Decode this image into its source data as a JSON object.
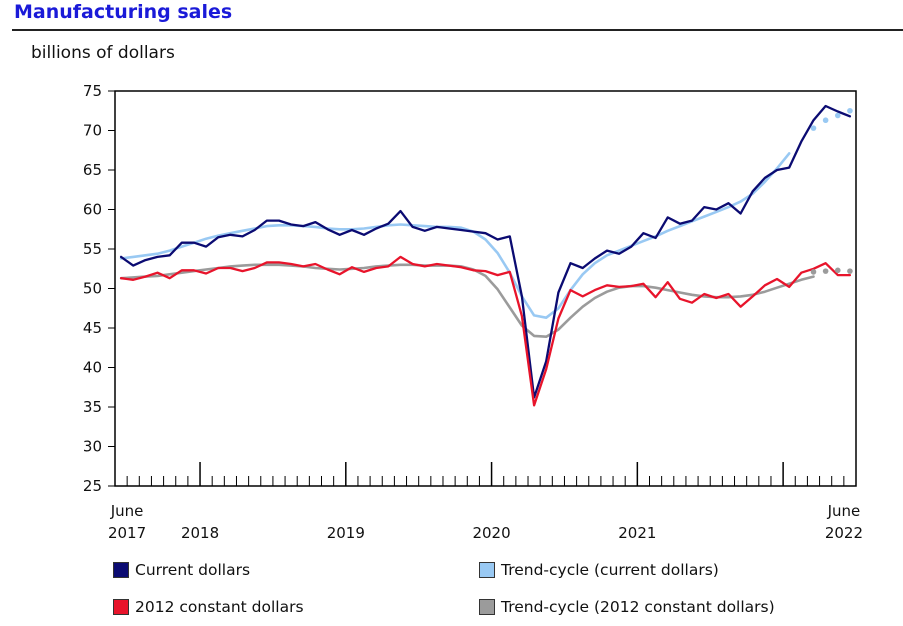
{
  "chart_data": {
    "type": "line",
    "title": "Manufacturing sales",
    "ylabel": "billions of dollars",
    "ylim": [
      25,
      75
    ],
    "yticks": [
      25,
      30,
      35,
      40,
      45,
      50,
      55,
      60,
      65,
      70,
      75
    ],
    "x_start": "June 2017",
    "x_end": "June 2022",
    "x_tick_labels": [
      {
        "month_index": 0,
        "line1": "June",
        "line2": "2017"
      },
      {
        "month_index": 6.5,
        "line1": "",
        "line2": "2018"
      },
      {
        "month_index": 18.5,
        "line1": "",
        "line2": "2019"
      },
      {
        "month_index": 30.5,
        "line1": "",
        "line2": "2020"
      },
      {
        "month_index": 42.5,
        "line1": "",
        "line2": "2021"
      },
      {
        "month_index": 60,
        "line1": "June",
        "line2": "2022"
      }
    ],
    "series": [
      {
        "name": "Current dollars",
        "color": "#0b0b72",
        "style": "solid",
        "values": [
          54.0,
          52.9,
          53.6,
          54.0,
          54.2,
          55.8,
          55.8,
          55.3,
          56.5,
          56.8,
          56.6,
          57.4,
          58.6,
          58.6,
          58.1,
          57.9,
          58.4,
          57.5,
          56.8,
          57.4,
          56.8,
          57.6,
          58.2,
          59.8,
          57.8,
          57.3,
          57.8,
          57.6,
          57.4,
          57.2,
          57.0,
          56.2,
          56.6,
          49.0,
          36.2,
          40.8,
          49.5,
          53.2,
          52.6,
          53.8,
          54.8,
          54.4,
          55.3,
          57.0,
          56.4,
          59.0,
          58.2,
          58.6,
          60.3,
          60.0,
          60.8,
          59.5,
          62.3,
          64.0,
          65.0,
          65.3,
          68.6,
          71.3,
          73.1,
          72.4,
          71.8
        ]
      },
      {
        "name": "Trend-cycle (current dollars)",
        "color": "#99c9f3",
        "style": "solid",
        "values": [
          53.8,
          54.0,
          54.2,
          54.4,
          54.8,
          55.3,
          55.8,
          56.3,
          56.7,
          57.0,
          57.3,
          57.6,
          57.9,
          58.0,
          58.0,
          57.9,
          57.8,
          57.6,
          57.5,
          57.5,
          57.6,
          57.8,
          58.0,
          58.1,
          58.0,
          57.9,
          57.8,
          57.8,
          57.7,
          57.2,
          56.2,
          54.5,
          52.0,
          49.0,
          46.6,
          46.3,
          47.5,
          49.8,
          51.8,
          53.2,
          54.2,
          54.8,
          55.4,
          56.0,
          56.6,
          57.3,
          57.9,
          58.5,
          59.1,
          59.7,
          60.3,
          61.0,
          62.0,
          63.5,
          65.2,
          67.1
        ]
      },
      {
        "name": "Trend-cycle (current dollars) projection",
        "color": "#99c9f3",
        "style": "dotted",
        "start": 57,
        "values": [
          70.3,
          71.3,
          71.9,
          72.5
        ]
      },
      {
        "name": "2012 constant dollars",
        "color": "#e8142b",
        "style": "solid",
        "values": [
          51.3,
          51.1,
          51.5,
          52.0,
          51.3,
          52.3,
          52.3,
          51.9,
          52.6,
          52.6,
          52.2,
          52.6,
          53.3,
          53.3,
          53.1,
          52.8,
          53.1,
          52.4,
          51.8,
          52.7,
          52.1,
          52.6,
          52.8,
          54.0,
          53.1,
          52.8,
          53.1,
          52.9,
          52.7,
          52.3,
          52.2,
          51.7,
          52.1,
          46.5,
          35.2,
          39.8,
          46.2,
          49.8,
          49.0,
          49.8,
          50.4,
          50.2,
          50.3,
          50.6,
          48.9,
          50.8,
          48.7,
          48.2,
          49.3,
          48.8,
          49.3,
          47.7,
          49.0,
          50.4,
          51.2,
          50.2,
          52.0,
          52.5,
          53.2,
          51.7,
          51.7
        ]
      },
      {
        "name": "Trend-cycle (2012 constant dollars)",
        "color": "#9b9b9b",
        "style": "solid",
        "values": [
          51.3,
          51.4,
          51.5,
          51.6,
          51.8,
          52.0,
          52.2,
          52.4,
          52.6,
          52.8,
          52.9,
          53.0,
          53.0,
          53.0,
          52.9,
          52.8,
          52.6,
          52.5,
          52.4,
          52.5,
          52.6,
          52.8,
          52.9,
          53.0,
          53.0,
          52.9,
          52.9,
          52.9,
          52.8,
          52.4,
          51.6,
          49.9,
          47.6,
          45.3,
          44.0,
          43.9,
          44.8,
          46.3,
          47.7,
          48.8,
          49.6,
          50.1,
          50.3,
          50.3,
          50.1,
          49.8,
          49.5,
          49.2,
          49.0,
          48.9,
          48.9,
          49.0,
          49.2,
          49.6,
          50.1,
          50.6,
          51.1,
          51.5
        ]
      },
      {
        "name": "Trend-cycle (2012 constant dollars) projection",
        "color": "#9b9b9b",
        "style": "dotted",
        "start": 57,
        "values": [
          52.1,
          52.2,
          52.3,
          52.2
        ]
      }
    ],
    "legend": [
      {
        "label": "Current dollars",
        "color": "#0b0b72"
      },
      {
        "label": "Trend-cycle (current dollars)",
        "color": "#99c9f3"
      },
      {
        "label": "2012 constant dollars",
        "color": "#e8142b"
      },
      {
        "label": "Trend-cycle (2012 constant dollars)",
        "color": "#9b9b9b"
      }
    ]
  }
}
